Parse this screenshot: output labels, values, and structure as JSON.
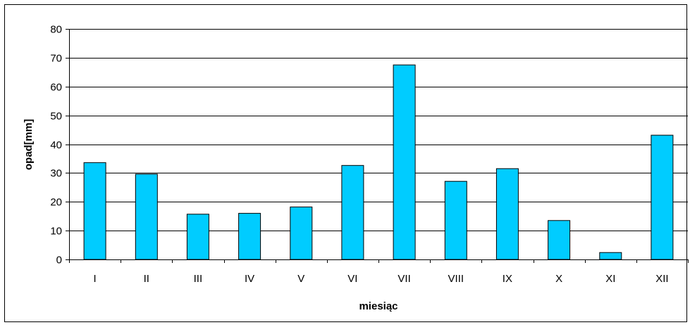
{
  "chart_data": {
    "type": "bar",
    "title": "",
    "xlabel": "miesiąc",
    "ylabel": "opad[mm]",
    "categories": [
      "I",
      "II",
      "III",
      "IV",
      "V",
      "VI",
      "VII",
      "VIII",
      "IX",
      "X",
      "XI",
      "XII"
    ],
    "values": [
      33.6,
      29.6,
      15.7,
      16.0,
      18.2,
      32.6,
      67.5,
      27.1,
      31.5,
      13.5,
      2.4,
      43.1
    ],
    "ylim": [
      0,
      80
    ],
    "yticks": [
      "0",
      "10",
      "20",
      "30",
      "40",
      "50",
      "60",
      "70",
      "80"
    ],
    "grid": true,
    "legend": "none",
    "colors": {
      "bar_fill": "#00ccff",
      "bar_stroke": "#000000",
      "grid": "#000000"
    }
  }
}
